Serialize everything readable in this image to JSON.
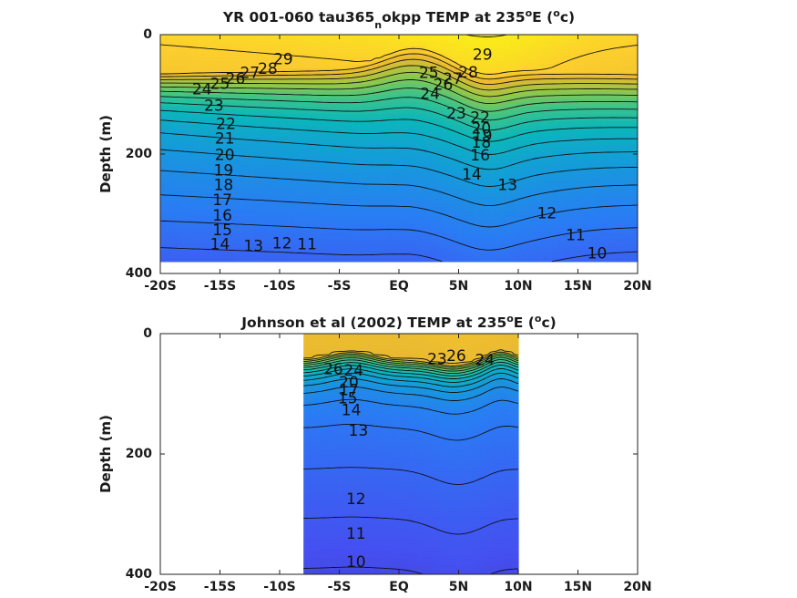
{
  "chart_data": [
    {
      "type": "heatmap",
      "title_main": "YR 001-060 tau365",
      "title_sub": "n",
      "title_rest": "okpp TEMP at 235",
      "title_deg1": "o",
      "title_e": "E (",
      "title_deg2": "o",
      "title_end": "c)",
      "ylabel": "Depth (m)",
      "xlim": [
        -20,
        20
      ],
      "ylim": [
        400,
        0
      ],
      "xticks": [
        -20,
        -15,
        -10,
        -5,
        0,
        5,
        10,
        15,
        20
      ],
      "xticklabels": [
        "-20S",
        "-15S",
        "-10S",
        "-5S",
        "EQ",
        "5N",
        "10N",
        "15N",
        "20N"
      ],
      "yticks": [
        0,
        200,
        400
      ],
      "yticklabels": [
        "0",
        "200",
        "400"
      ],
      "data_extent": {
        "lat": [
          -20,
          20
        ],
        "depth": [
          0,
          380
        ]
      },
      "contour_levels": [
        10,
        11,
        12,
        13,
        14,
        15,
        16,
        17,
        18,
        19,
        20,
        21,
        22,
        23,
        24,
        25,
        26,
        27,
        28,
        29
      ],
      "contour_labels": [
        {
          "text": "29",
          "lat": -9.7,
          "depth": 42
        },
        {
          "text": "28",
          "lat": -11,
          "depth": 58
        },
        {
          "text": "27",
          "lat": -12.5,
          "depth": 65
        },
        {
          "text": "26",
          "lat": -13.7,
          "depth": 75
        },
        {
          "text": "25",
          "lat": -15,
          "depth": 83
        },
        {
          "text": "24",
          "lat": -16.5,
          "depth": 92
        },
        {
          "text": "23",
          "lat": -15.5,
          "depth": 120
        },
        {
          "text": "22",
          "lat": -14.5,
          "depth": 150
        },
        {
          "text": "21",
          "lat": -14.6,
          "depth": 175
        },
        {
          "text": "20",
          "lat": -14.6,
          "depth": 202
        },
        {
          "text": "19",
          "lat": -14.7,
          "depth": 228
        },
        {
          "text": "18",
          "lat": -14.7,
          "depth": 253
        },
        {
          "text": "17",
          "lat": -14.8,
          "depth": 278
        },
        {
          "text": "16",
          "lat": -14.8,
          "depth": 304
        },
        {
          "text": "15",
          "lat": -14.8,
          "depth": 328
        },
        {
          "text": "14",
          "lat": -15,
          "depth": 352
        },
        {
          "text": "13",
          "lat": -12.2,
          "depth": 355
        },
        {
          "text": "12",
          "lat": -9.8,
          "depth": 350
        },
        {
          "text": "11",
          "lat": -7.7,
          "depth": 352
        },
        {
          "text": "29",
          "lat": 7,
          "depth": 34
        },
        {
          "text": "28",
          "lat": 5.8,
          "depth": 64
        },
        {
          "text": "27",
          "lat": 4.5,
          "depth": 75
        },
        {
          "text": "26",
          "lat": 3.7,
          "depth": 85
        },
        {
          "text": "25",
          "lat": 2.5,
          "depth": 65
        },
        {
          "text": "24",
          "lat": 2.6,
          "depth": 100
        },
        {
          "text": "23",
          "lat": 4.8,
          "depth": 133
        },
        {
          "text": "22",
          "lat": 6.8,
          "depth": 140
        },
        {
          "text": "20",
          "lat": 6.9,
          "depth": 158
        },
        {
          "text": "19",
          "lat": 7,
          "depth": 170
        },
        {
          "text": "18",
          "lat": 6.9,
          "depth": 182
        },
        {
          "text": "16",
          "lat": 6.8,
          "depth": 203
        },
        {
          "text": "14",
          "lat": 6.1,
          "depth": 235
        },
        {
          "text": "13",
          "lat": 9.1,
          "depth": 253
        },
        {
          "text": "12",
          "lat": 12.4,
          "depth": 300
        },
        {
          "text": "11",
          "lat": 14.8,
          "depth": 337
        },
        {
          "text": "10",
          "lat": 16.6,
          "depth": 367
        }
      ]
    },
    {
      "type": "heatmap",
      "title_main": "Johnson et al (2002) TEMP at 235",
      "title_deg1": "o",
      "title_e": "E (",
      "title_deg2": "o",
      "title_end": "c)",
      "ylabel": "Depth (m)",
      "xlim": [
        -20,
        20
      ],
      "ylim": [
        400,
        0
      ],
      "xticks": [
        -20,
        -15,
        -10,
        -5,
        0,
        5,
        10,
        15,
        20
      ],
      "xticklabels": [
        "-20S",
        "-15S",
        "-10S",
        "-5S",
        "EQ",
        "5N",
        "10N",
        "15N",
        "20N"
      ],
      "yticks": [
        0,
        200,
        400
      ],
      "yticklabels": [
        "0",
        "200",
        "400"
      ],
      "data_extent": {
        "lat": [
          -8,
          10
        ],
        "depth": [
          0,
          400
        ]
      },
      "contour_levels": [
        10,
        11,
        12,
        13,
        14,
        15,
        16,
        17,
        18,
        19,
        20,
        21,
        22,
        23,
        24,
        25,
        26
      ],
      "contour_labels": [
        {
          "text": "26",
          "lat": -5.5,
          "depth": 60
        },
        {
          "text": "24",
          "lat": -3.8,
          "depth": 62
        },
        {
          "text": "20",
          "lat": -4.2,
          "depth": 82
        },
        {
          "text": "17",
          "lat": -4.2,
          "depth": 95
        },
        {
          "text": "15",
          "lat": -4.3,
          "depth": 108
        },
        {
          "text": "14",
          "lat": -4,
          "depth": 128
        },
        {
          "text": "13",
          "lat": -3.4,
          "depth": 162
        },
        {
          "text": "23",
          "lat": 3.2,
          "depth": 43
        },
        {
          "text": "26",
          "lat": 4.8,
          "depth": 38
        },
        {
          "text": "24",
          "lat": 7.2,
          "depth": 45
        },
        {
          "text": "12",
          "lat": -3.6,
          "depth": 276
        },
        {
          "text": "11",
          "lat": -3.6,
          "depth": 333
        },
        {
          "text": "10",
          "lat": -3.6,
          "depth": 380
        }
      ]
    }
  ]
}
